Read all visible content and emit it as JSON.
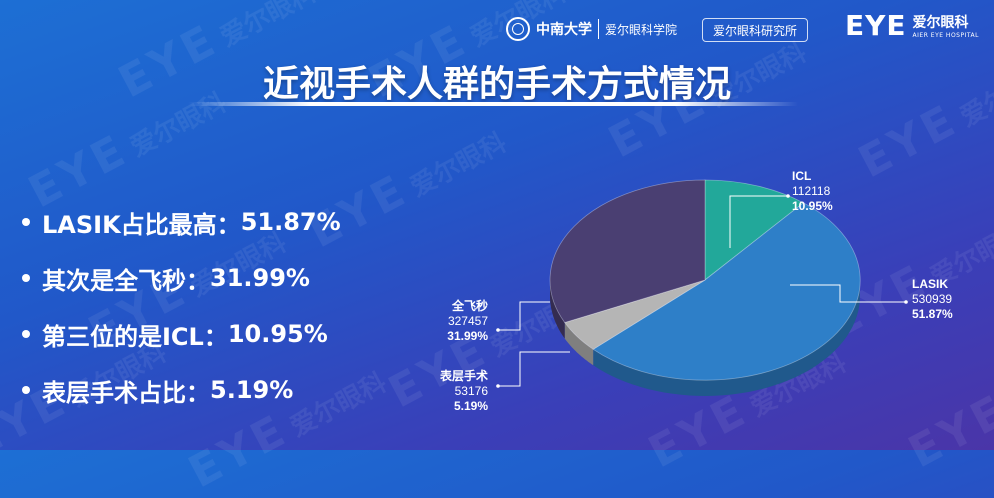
{
  "header": {
    "university_name": "中南大学",
    "college_name": "爱尔眼科学院",
    "institute_name": "爱尔眼科研究所",
    "brand_mark": "EYE",
    "brand_cn": "爱尔眼科",
    "brand_en": "AIER EYE HOSPITAL"
  },
  "watermark": {
    "mark": "EYE",
    "text": "爱尔眼科"
  },
  "title": "近视手术人群的手术方式情况",
  "bullets": [
    {
      "text": "LASIK占比最高：",
      "value": "51.87%"
    },
    {
      "text": "其次是全飞秒：",
      "value": "31.99%"
    },
    {
      "text": "第三位的是ICL：",
      "value": "10.95%"
    },
    {
      "text": "表层手术占比：",
      "value": "5.19%"
    }
  ],
  "colors": {
    "LASIK": "#2e7fc8",
    "全飞秒": "#4a3f72",
    "ICL": "#22a89a",
    "表层手术": "#b5b5b5"
  },
  "chart_data": {
    "type": "pie",
    "slices": [
      {
        "label": "ICL",
        "value": 112118,
        "percent": "10.95%"
      },
      {
        "label": "LASIK",
        "value": 530939,
        "percent": "51.87%"
      },
      {
        "label": "表层手术",
        "value": 53176,
        "percent": "5.19%"
      },
      {
        "label": "全飞秒",
        "value": 327457,
        "percent": "31.99%"
      }
    ]
  }
}
